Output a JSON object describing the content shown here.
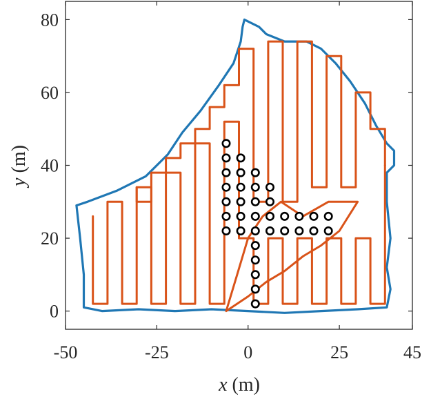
{
  "chart_data": {
    "type": "line",
    "title": "",
    "xlabel": {
      "var": "x",
      "unit": " (m)"
    },
    "ylabel": {
      "var": "y",
      "unit": " (m)"
    },
    "xlim": [
      -50,
      45
    ],
    "ylim": [
      -5,
      85
    ],
    "xticks": [
      -50,
      -25,
      0,
      25,
      45
    ],
    "xtick_labels": [
      "-50",
      "-25",
      "0",
      "25",
      "45"
    ],
    "yticks": [
      0,
      20,
      40,
      60,
      80
    ],
    "ytick_labels": [
      "0",
      "20",
      "40",
      "60",
      "80"
    ],
    "grid": false,
    "legend": "none",
    "colors": {
      "boundary": "#1f77b4",
      "path": "#d95319",
      "obstacle": "#000000",
      "axes": "#262626"
    },
    "series": [
      {
        "role": "boundary",
        "x": [
          -47,
          -44,
          -36,
          -28,
          -22,
          -18,
          -13,
          -8,
          -4,
          -2,
          -1.5,
          -1,
          1,
          3,
          5,
          10,
          16,
          20,
          24,
          28,
          32,
          35,
          38,
          40,
          40,
          38,
          38,
          39,
          38,
          39,
          38,
          30,
          20,
          10,
          0,
          -10,
          -20,
          -30,
          -40,
          -45,
          -45,
          -46,
          -47
        ],
        "y": [
          29,
          30,
          33,
          37,
          43,
          49,
          55,
          62,
          68,
          74,
          78,
          80,
          79,
          78,
          76,
          74,
          74,
          72,
          68,
          63,
          57,
          51,
          46,
          44,
          40,
          38,
          30,
          20,
          12,
          6,
          1,
          0.5,
          0,
          -0.5,
          0,
          0.5,
          0,
          0.5,
          0,
          1,
          10,
          20,
          29
        ]
      },
      {
        "role": "coverage-path",
        "x": [
          -42.5,
          -42.5,
          -38.5,
          -38.5,
          -34.5,
          -34.5,
          -30.5,
          -30.5,
          -26.5,
          -26.5,
          -22.5,
          -22.5,
          -18.5,
          -18.5,
          -14.5,
          -14.5,
          -10.5,
          -10.5,
          -6.5,
          -6.5,
          -2.5,
          -2.5,
          1.5,
          1.5,
          5.5,
          5.5,
          9.5,
          9.5,
          13.5,
          13.5,
          17.5,
          17.5,
          21.5,
          21.5,
          25.5,
          25.5,
          29.5,
          29.5,
          33.5,
          33.5,
          37.5,
          37.5
        ],
        "y": [
          26,
          2,
          2,
          30,
          30,
          2,
          2,
          34,
          34,
          2,
          2,
          38,
          38,
          2,
          2,
          46,
          46,
          2,
          2,
          52,
          52,
          20,
          20,
          2,
          2,
          20,
          20,
          2,
          2,
          20,
          20,
          2,
          2,
          20,
          20,
          2,
          2,
          20,
          20,
          2,
          2,
          40
        ]
      },
      {
        "role": "coverage-path",
        "x": [
          -30.5,
          -30.5,
          -26.5,
          -26.5,
          -22.5,
          -22.5,
          -18.5,
          -18.5,
          -14.5,
          -14.5,
          -10.5,
          -10.5,
          -6.5,
          -6.5,
          -2.5,
          -2.5,
          1.5,
          1.5,
          5.5,
          5.5,
          9.5,
          9.5,
          13.5,
          13.5,
          17.5,
          17.5,
          21.5,
          21.5,
          25.5,
          25.5,
          29.5,
          29.5,
          33.5,
          33.5,
          37.5,
          37.5
        ],
        "y": [
          34,
          30,
          30,
          38,
          38,
          42,
          42,
          46,
          46,
          50,
          50,
          56,
          56,
          62,
          62,
          72,
          72,
          30,
          30,
          74,
          74,
          30,
          30,
          74,
          74,
          34,
          34,
          70,
          70,
          34,
          34,
          60,
          60,
          50,
          50,
          40
        ]
      },
      {
        "role": "coverage-path",
        "x": [
          -6,
          0,
          5,
          10,
          15,
          20,
          25,
          30,
          22,
          15,
          9,
          4,
          0,
          -3,
          -6
        ],
        "y": [
          0,
          4,
          8,
          11,
          15,
          18,
          22,
          30,
          30,
          26,
          30,
          26,
          20,
          10,
          0
        ]
      }
    ],
    "obstacles": {
      "marker": "circle",
      "x": [
        -6,
        -6,
        -6,
        -6,
        -6,
        -6,
        -6,
        -2,
        -2,
        -2,
        -2,
        -2,
        -2,
        2,
        2,
        2,
        2,
        2,
        2,
        2,
        2,
        2,
        2,
        6,
        6,
        6,
        6,
        10,
        10,
        14,
        14,
        18,
        18,
        22,
        22
      ],
      "y": [
        46,
        42,
        38,
        34,
        30,
        26,
        22,
        42,
        38,
        34,
        30,
        26,
        22,
        38,
        34,
        30,
        26,
        22,
        18,
        14,
        10,
        6,
        2,
        34,
        30,
        26,
        22,
        26,
        22,
        26,
        22,
        26,
        22,
        26,
        22
      ]
    }
  }
}
